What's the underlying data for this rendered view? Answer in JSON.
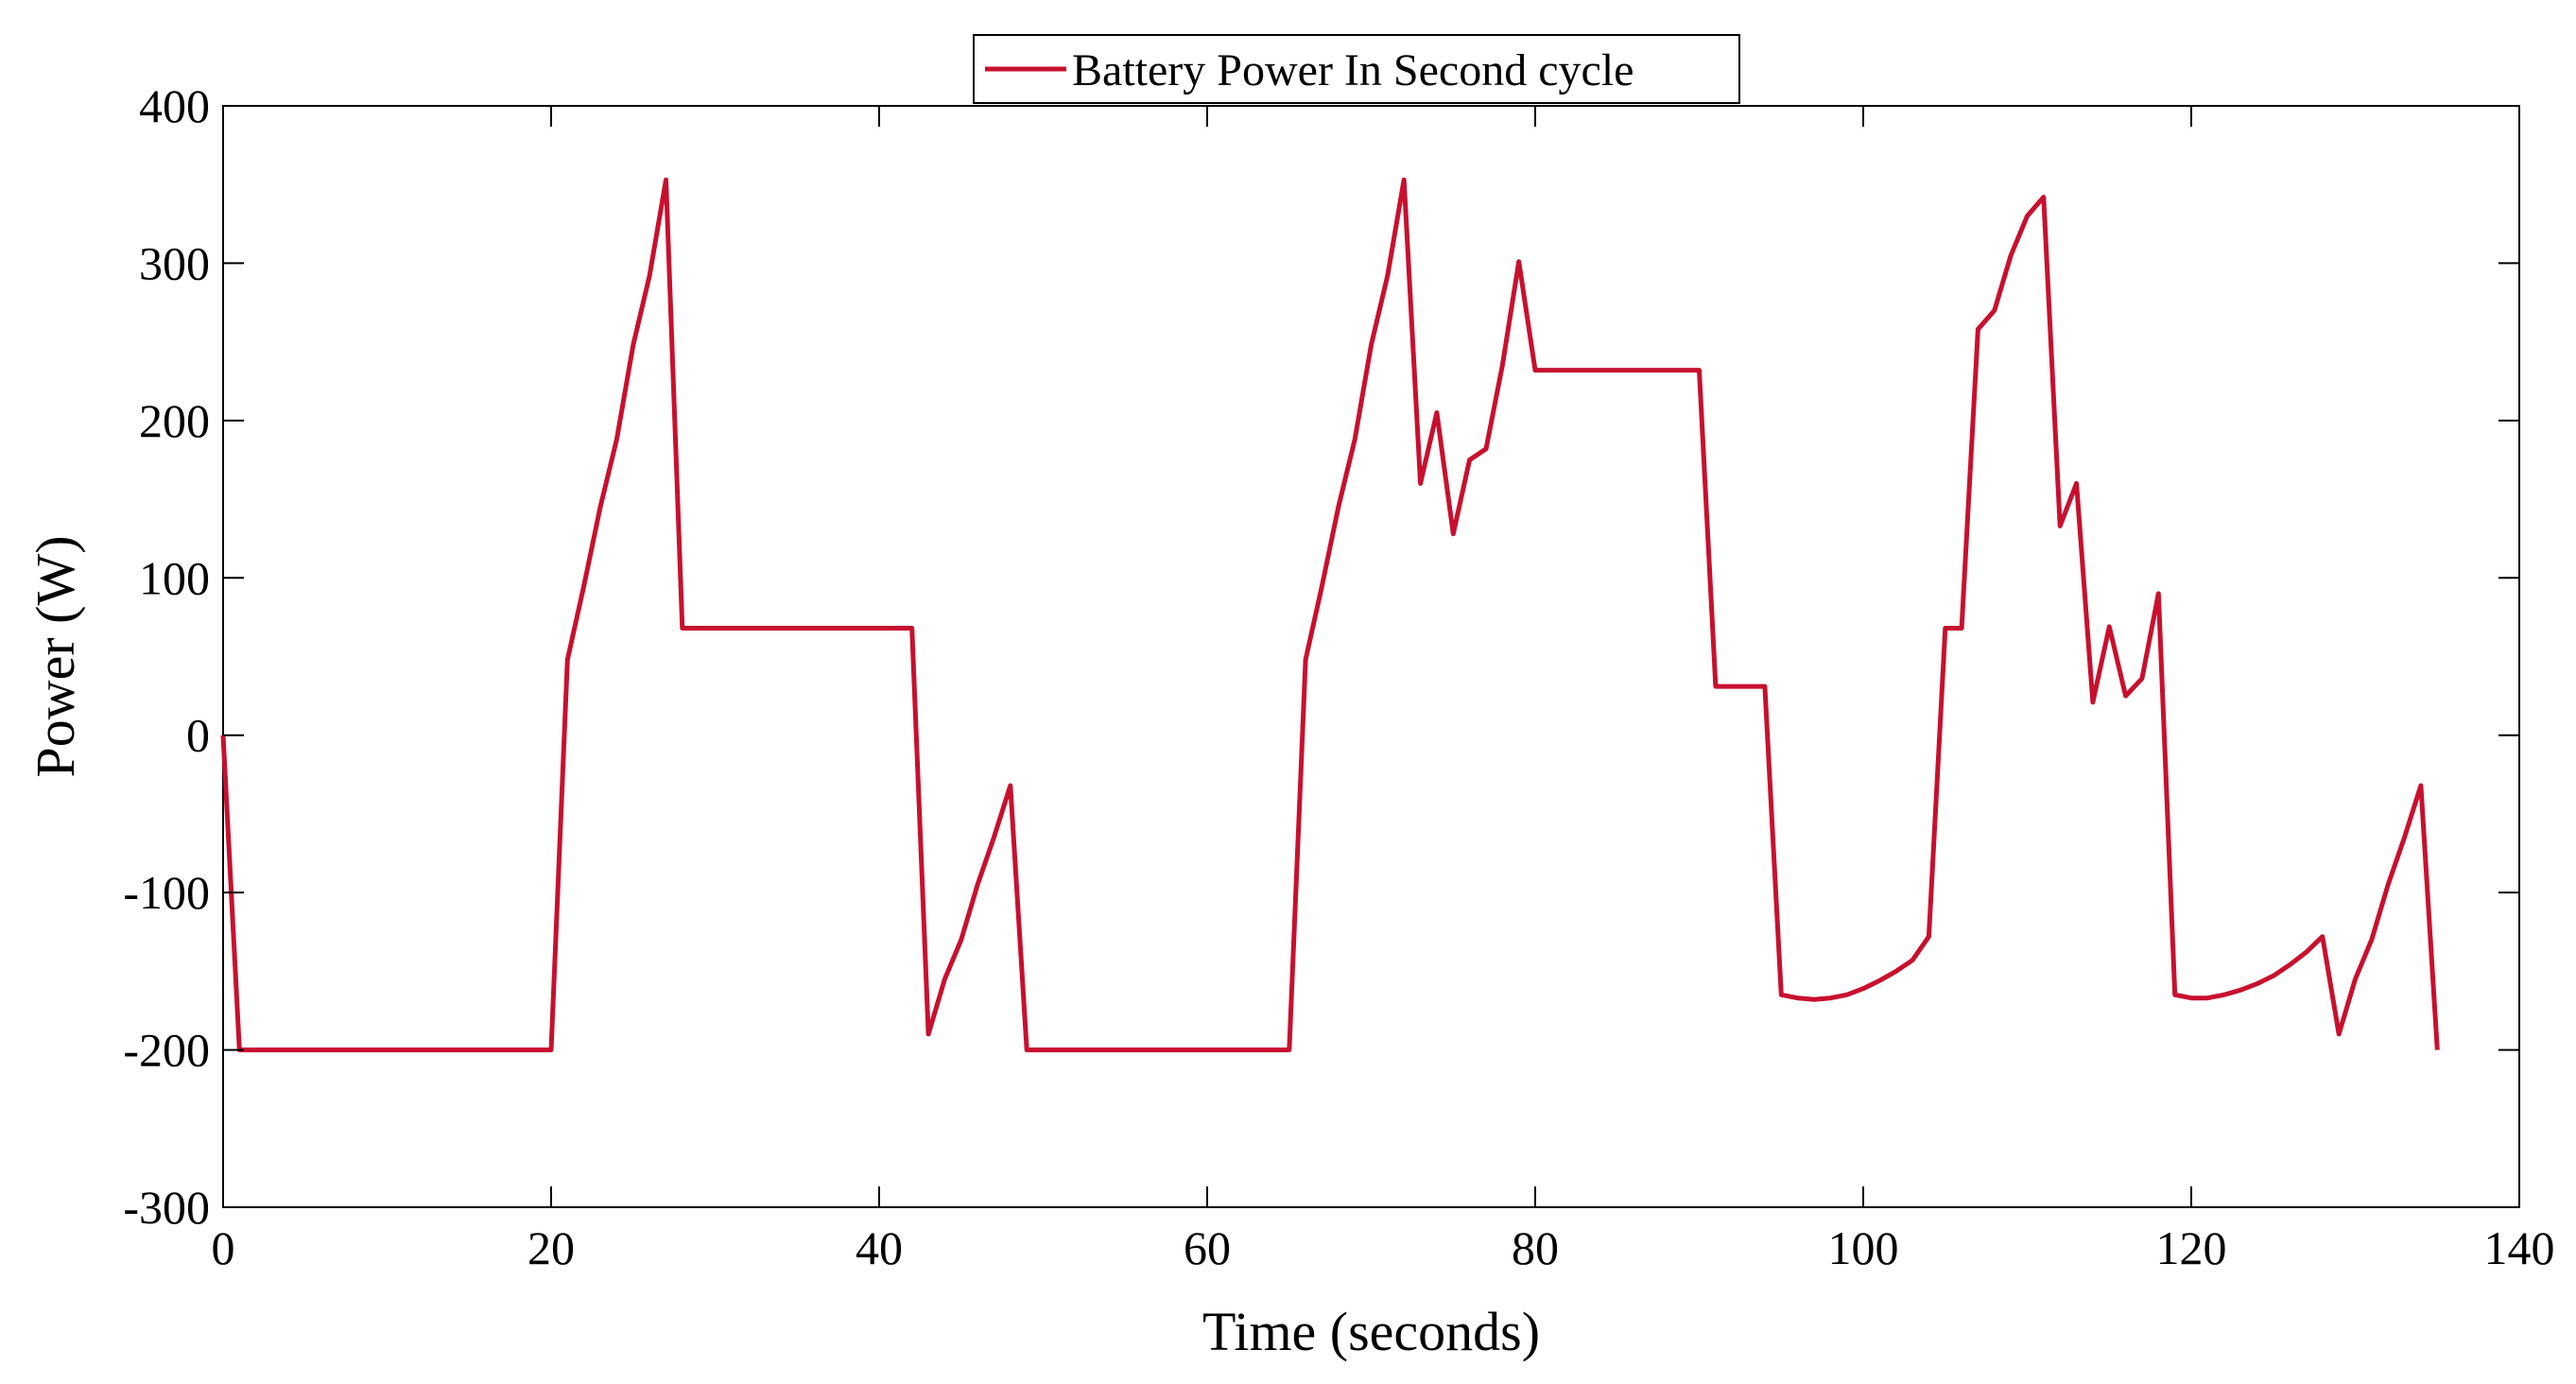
{
  "chart_data": {
    "type": "line",
    "title": "",
    "xlabel": "Time (seconds)",
    "ylabel": "Power (W)",
    "xlim": [
      0,
      140
    ],
    "ylim": [
      -300,
      400
    ],
    "xticks": [
      0,
      20,
      40,
      60,
      80,
      100,
      120,
      140
    ],
    "yticks": [
      -300,
      -200,
      -100,
      0,
      100,
      200,
      300,
      400
    ],
    "xtick_labels": [
      "0",
      "20",
      "40",
      "60",
      "80",
      "100",
      "120",
      "140"
    ],
    "ytick_labels": [
      "-300",
      "-200",
      "-100",
      "0",
      "100",
      "200",
      "300",
      "400"
    ],
    "grid": false,
    "legend_position": "top-center",
    "series": [
      {
        "name": "Battery Power In Second cycle",
        "color": "#c8102e",
        "points": [
          [
            0,
            0
          ],
          [
            1,
            -200
          ],
          [
            20,
            -200
          ],
          [
            21,
            48
          ],
          [
            22,
            95
          ],
          [
            23,
            145
          ],
          [
            24,
            188
          ],
          [
            25,
            248
          ],
          [
            26,
            292
          ],
          [
            27,
            353
          ],
          [
            28,
            68
          ],
          [
            42,
            68
          ],
          [
            43,
            -190
          ],
          [
            44,
            -155
          ],
          [
            45,
            -130
          ],
          [
            46,
            -95
          ],
          [
            47,
            -65
          ],
          [
            48,
            -32
          ],
          [
            49,
            -200
          ],
          [
            65,
            -200
          ],
          [
            66,
            48
          ],
          [
            67,
            95
          ],
          [
            68,
            145
          ],
          [
            69,
            188
          ],
          [
            70,
            248
          ],
          [
            71,
            292
          ],
          [
            72,
            353
          ],
          [
            73,
            160
          ],
          [
            74,
            205
          ],
          [
            75,
            128
          ],
          [
            76,
            175
          ],
          [
            77,
            182
          ],
          [
            78,
            235
          ],
          [
            79,
            301
          ],
          [
            80,
            232
          ],
          [
            90,
            232
          ],
          [
            91,
            31
          ],
          [
            94,
            31
          ],
          [
            95,
            -165
          ],
          [
            96,
            -167
          ],
          [
            97,
            -168
          ],
          [
            98,
            -167
          ],
          [
            99,
            -165
          ],
          [
            100,
            -161
          ],
          [
            101,
            -156
          ],
          [
            102,
            -150
          ],
          [
            103,
            -143
          ],
          [
            104,
            -128
          ],
          [
            105,
            68
          ],
          [
            106,
            68
          ],
          [
            107,
            258
          ],
          [
            108,
            270
          ],
          [
            109,
            305
          ],
          [
            110,
            330
          ],
          [
            111,
            342
          ],
          [
            112,
            133
          ],
          [
            113,
            160
          ],
          [
            114,
            21
          ],
          [
            115,
            69
          ],
          [
            116,
            25
          ],
          [
            117,
            36
          ],
          [
            118,
            90
          ],
          [
            119,
            -165
          ],
          [
            120,
            -167
          ],
          [
            121,
            -167
          ],
          [
            122,
            -165
          ],
          [
            123,
            -162
          ],
          [
            124,
            -158
          ],
          [
            125,
            -153
          ],
          [
            126,
            -146
          ],
          [
            127,
            -138
          ],
          [
            128,
            -128
          ],
          [
            129,
            -190
          ],
          [
            130,
            -155
          ],
          [
            131,
            -130
          ],
          [
            132,
            -95
          ],
          [
            133,
            -65
          ],
          [
            134,
            -32
          ],
          [
            135,
            -200
          ]
        ]
      }
    ]
  }
}
